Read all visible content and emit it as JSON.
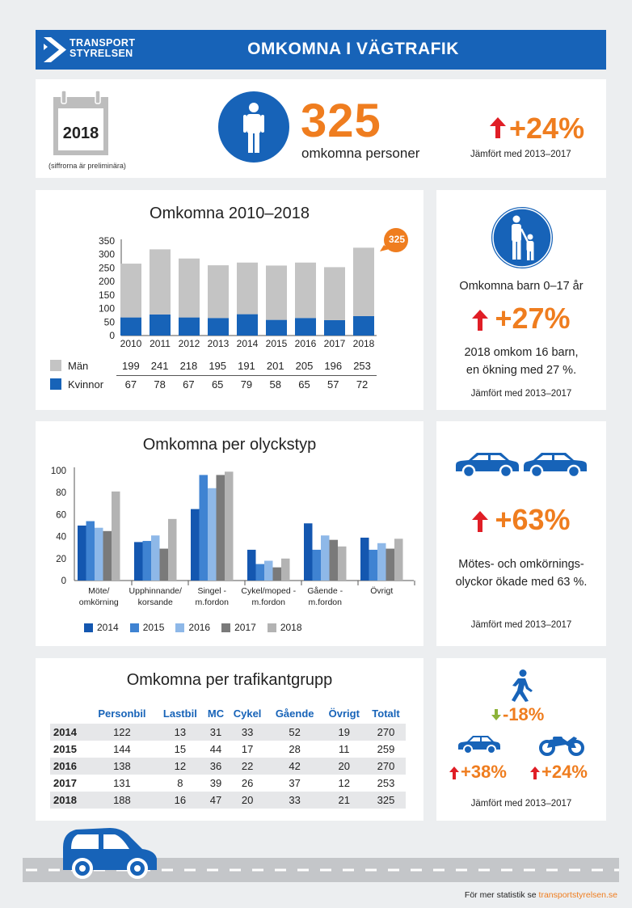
{
  "header": {
    "logo_line1": "TRANSPORT",
    "logo_line2": "STYRELSEN",
    "title": "OMKOMNA I VÄGTRAFIK"
  },
  "summary": {
    "year": "2018",
    "preliminary_note": "(siffrorna är preliminära)",
    "total": "325",
    "total_caption": "omkomna personer",
    "change": "+24%",
    "compare": "Jämfört med 2013–2017"
  },
  "yearly": {
    "title": "Omkomna 2010–2018",
    "bubble": "325",
    "row_men_label": "Män",
    "row_women_label": "Kvinnor"
  },
  "children": {
    "title": "Omkomna barn 0–17 år",
    "change": "+27%",
    "text_line1": "2018 omkom 16 barn,",
    "text_line2": "en ökning med 27 %.",
    "compare": "Jämfört med 2013–2017"
  },
  "accident_type": {
    "title": "Omkomna per olyckstyp"
  },
  "head_on": {
    "change": "+63%",
    "text_line1": "Mötes- och omkörnings-",
    "text_line2": "olyckor ökade med 63 %.",
    "compare": "Jämfört med 2013–2017"
  },
  "road_user": {
    "title": "Omkomna per trafikantgrupp",
    "columns": [
      "Personbil",
      "Lastbil",
      "MC",
      "Cykel",
      "Gående",
      "Övrigt",
      "Totalt"
    ],
    "rows": [
      {
        "year": "2014",
        "values": [
          "122",
          "13",
          "31",
          "33",
          "52",
          "19",
          "270"
        ]
      },
      {
        "year": "2015",
        "values": [
          "144",
          "15",
          "44",
          "17",
          "28",
          "11",
          "259"
        ]
      },
      {
        "year": "2016",
        "values": [
          "138",
          "12",
          "36",
          "22",
          "42",
          "20",
          "270"
        ]
      },
      {
        "year": "2017",
        "values": [
          "131",
          "8",
          "39",
          "26",
          "37",
          "12",
          "253"
        ]
      },
      {
        "year": "2018",
        "values": [
          "188",
          "16",
          "47",
          "20",
          "33",
          "21",
          "325"
        ]
      }
    ]
  },
  "road_user_change": {
    "pedestrian": "-18%",
    "car": "+38%",
    "mc": "+24%",
    "compare": "Jämfört med 2013–2017"
  },
  "footer": {
    "text": "För mer statistik se ",
    "link": "transportstyrelsen.se"
  },
  "colors": {
    "brand_blue": "#1763b8",
    "orange": "#ef7d1f",
    "red_arrow": "#e01e26",
    "green_arrow": "#8db33a",
    "gray_bar": "#c4c4c4"
  },
  "chart_data": [
    {
      "type": "bar",
      "stacked": true,
      "title": "Omkomna 2010–2018",
      "categories": [
        "2010",
        "2011",
        "2012",
        "2013",
        "2014",
        "2015",
        "2016",
        "2017",
        "2018"
      ],
      "series": [
        {
          "name": "Kvinnor",
          "color": "#1763b8",
          "values": [
            67,
            78,
            67,
            65,
            79,
            58,
            65,
            57,
            72
          ]
        },
        {
          "name": "Män",
          "color": "#c4c4c4",
          "values": [
            199,
            241,
            218,
            195,
            191,
            201,
            205,
            196,
            253
          ]
        }
      ],
      "yticks": [
        "0",
        "50",
        "100",
        "150",
        "200",
        "250",
        "300",
        "350"
      ],
      "ylim": [
        0,
        350
      ]
    },
    {
      "type": "bar",
      "title": "Omkomna per olyckstyp",
      "categories": [
        [
          "Möte/",
          "omkörning"
        ],
        [
          "Upphinnande/",
          "korsande"
        ],
        [
          "Singel -",
          "m.fordon"
        ],
        [
          "Cykel/moped -",
          "m.fordon"
        ],
        [
          "Gående -",
          "m.fordon"
        ],
        [
          "Övrigt",
          ""
        ]
      ],
      "series": [
        {
          "name": "2014",
          "color": "#1457b0",
          "values": [
            50,
            35,
            65,
            28,
            52,
            39
          ]
        },
        {
          "name": "2015",
          "color": "#3f83d2",
          "values": [
            54,
            36,
            96,
            15,
            28,
            28
          ]
        },
        {
          "name": "2016",
          "color": "#8eb8e8",
          "values": [
            48,
            41,
            84,
            18,
            41,
            34
          ]
        },
        {
          "name": "2017",
          "color": "#7a7a7a",
          "values": [
            45,
            29,
            96,
            12,
            37,
            29
          ]
        },
        {
          "name": "2018",
          "color": "#b3b3b3",
          "values": [
            81,
            56,
            99,
            20,
            31,
            38
          ]
        }
      ],
      "yticks": [
        "0",
        "20",
        "40",
        "60",
        "80",
        "100"
      ],
      "ylim": [
        0,
        100
      ]
    }
  ]
}
